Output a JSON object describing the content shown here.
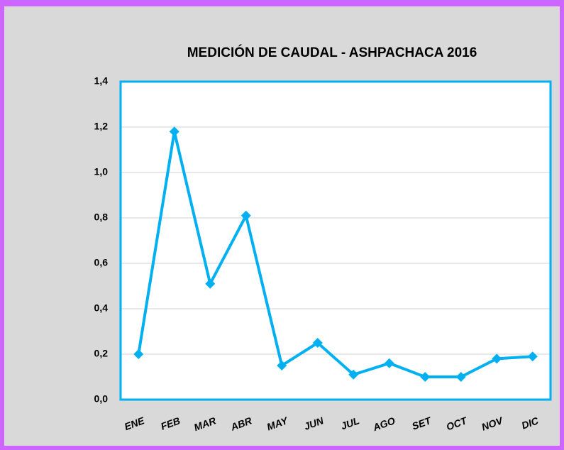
{
  "chart_data": {
    "type": "line",
    "title": "MEDICIÓN DE CAUDAL - ASHPACHACA 2016",
    "categories": [
      "ENE",
      "FEB",
      "MAR",
      "ABR",
      "MAY",
      "JUN",
      "JUL",
      "AGO",
      "SET",
      "OCT",
      "NOV",
      "DIC"
    ],
    "values": [
      0.2,
      1.18,
      0.51,
      0.81,
      0.15,
      0.25,
      0.11,
      0.16,
      0.1,
      0.1,
      0.18,
      0.19
    ],
    "color": "#00b0f0",
    "ylim": [
      0,
      1.4
    ],
    "yticks": [
      {
        "value": 0,
        "label": "0,0"
      },
      {
        "value": 0.2,
        "label": "0,2"
      },
      {
        "value": 0.4,
        "label": "0,4"
      },
      {
        "value": 0.6,
        "label": "0,6"
      },
      {
        "value": 0.8,
        "label": "0,8"
      },
      {
        "value": 1.0,
        "label": "1,0"
      },
      {
        "value": 1.2,
        "label": "1,2"
      },
      {
        "value": 1.4,
        "label": "1,4"
      }
    ],
    "grid": true
  }
}
